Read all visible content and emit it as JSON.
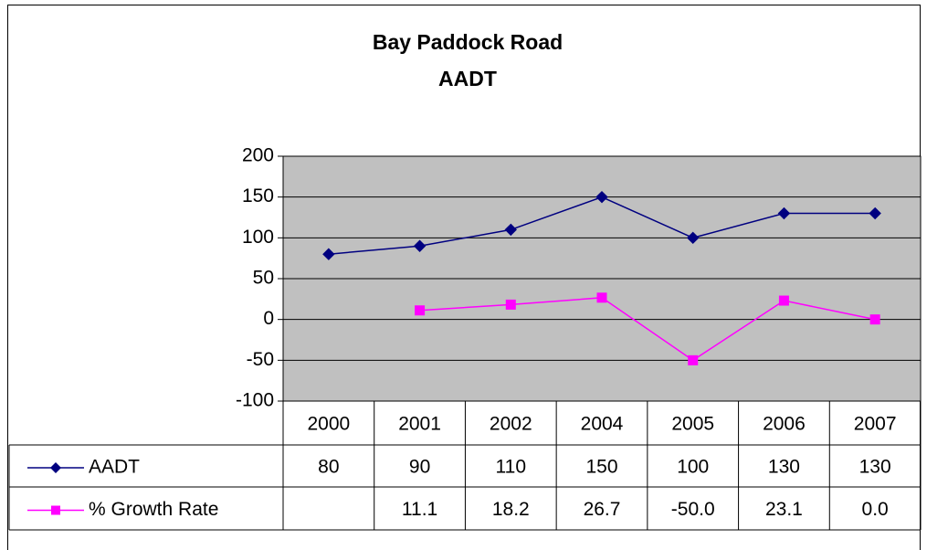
{
  "chart_data": {
    "type": "line",
    "title": [
      "Bay Paddock Road",
      "AADT"
    ],
    "categories": [
      "2000",
      "2001",
      "2002",
      "2004",
      "2005",
      "2006",
      "2007"
    ],
    "series": [
      {
        "name": "AADT",
        "color": "#000080",
        "marker": "diamond",
        "values": [
          80,
          90,
          110,
          150,
          100,
          130,
          130
        ]
      },
      {
        "name": "% Growth Rate",
        "color": "#ff00ff",
        "marker": "square",
        "values": [
          null,
          11.1,
          18.2,
          26.7,
          -50.0,
          23.1,
          0.0
        ],
        "value_labels": [
          null,
          "11.1",
          "18.2",
          "26.7",
          "-50.0",
          "23.1",
          "0.0"
        ]
      }
    ],
    "ylim": [
      -100,
      200
    ],
    "yticks": [
      -100,
      -50,
      0,
      50,
      100,
      150,
      200
    ],
    "grid": true,
    "plot_background": "#c0c0c0",
    "data_table": true
  }
}
